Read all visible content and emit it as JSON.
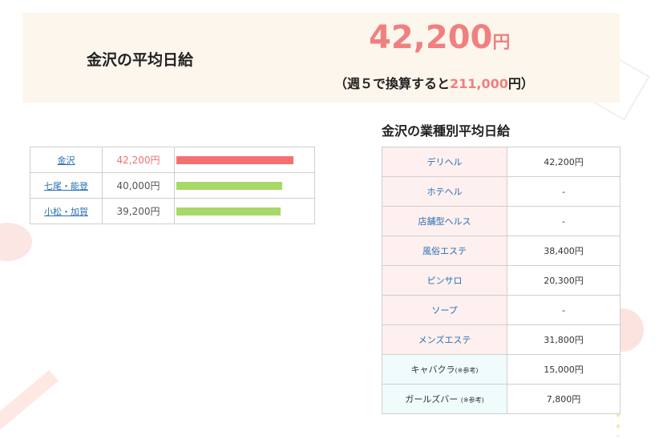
{
  "summary": {
    "label": "金沢の平均日給",
    "amount": "42,200",
    "unit": "円",
    "weekly_prefix": "（週５で換算すると",
    "weekly_amount": "211,000",
    "weekly_suffix": "円）"
  },
  "areas": [
    {
      "name": "金沢",
      "amount": "42,200円",
      "value": 42200,
      "bar_color": "#f47070",
      "current": true
    },
    {
      "name": "七尾・能登",
      "amount": "40,000円",
      "value": 40000,
      "bar_color": "#a8d868",
      "current": false
    },
    {
      "name": "小松・加賀",
      "amount": "39,200円",
      "value": 39200,
      "bar_color": "#a8d868",
      "current": false
    }
  ],
  "types": {
    "title": "金沢の業種別平均日給",
    "rows": [
      {
        "name": "デリヘル",
        "note": "",
        "value": "42,200円"
      },
      {
        "name": "ホテヘル",
        "note": "",
        "value": "-"
      },
      {
        "name": "店舗型ヘルス",
        "note": "",
        "value": "-"
      },
      {
        "name": "風俗エステ",
        "note": "",
        "value": "38,400円"
      },
      {
        "name": "ピンサロ",
        "note": "",
        "value": "20,300円"
      },
      {
        "name": "ソープ",
        "note": "",
        "value": "-"
      },
      {
        "name": "メンズエステ",
        "note": "",
        "value": "31,800円"
      },
      {
        "name": "キャバクラ",
        "note": "(※参考)",
        "value": "15,000円"
      },
      {
        "name": "ガールズバー ",
        "note": "(※参考)",
        "value": "7,800円"
      }
    ]
  }
}
